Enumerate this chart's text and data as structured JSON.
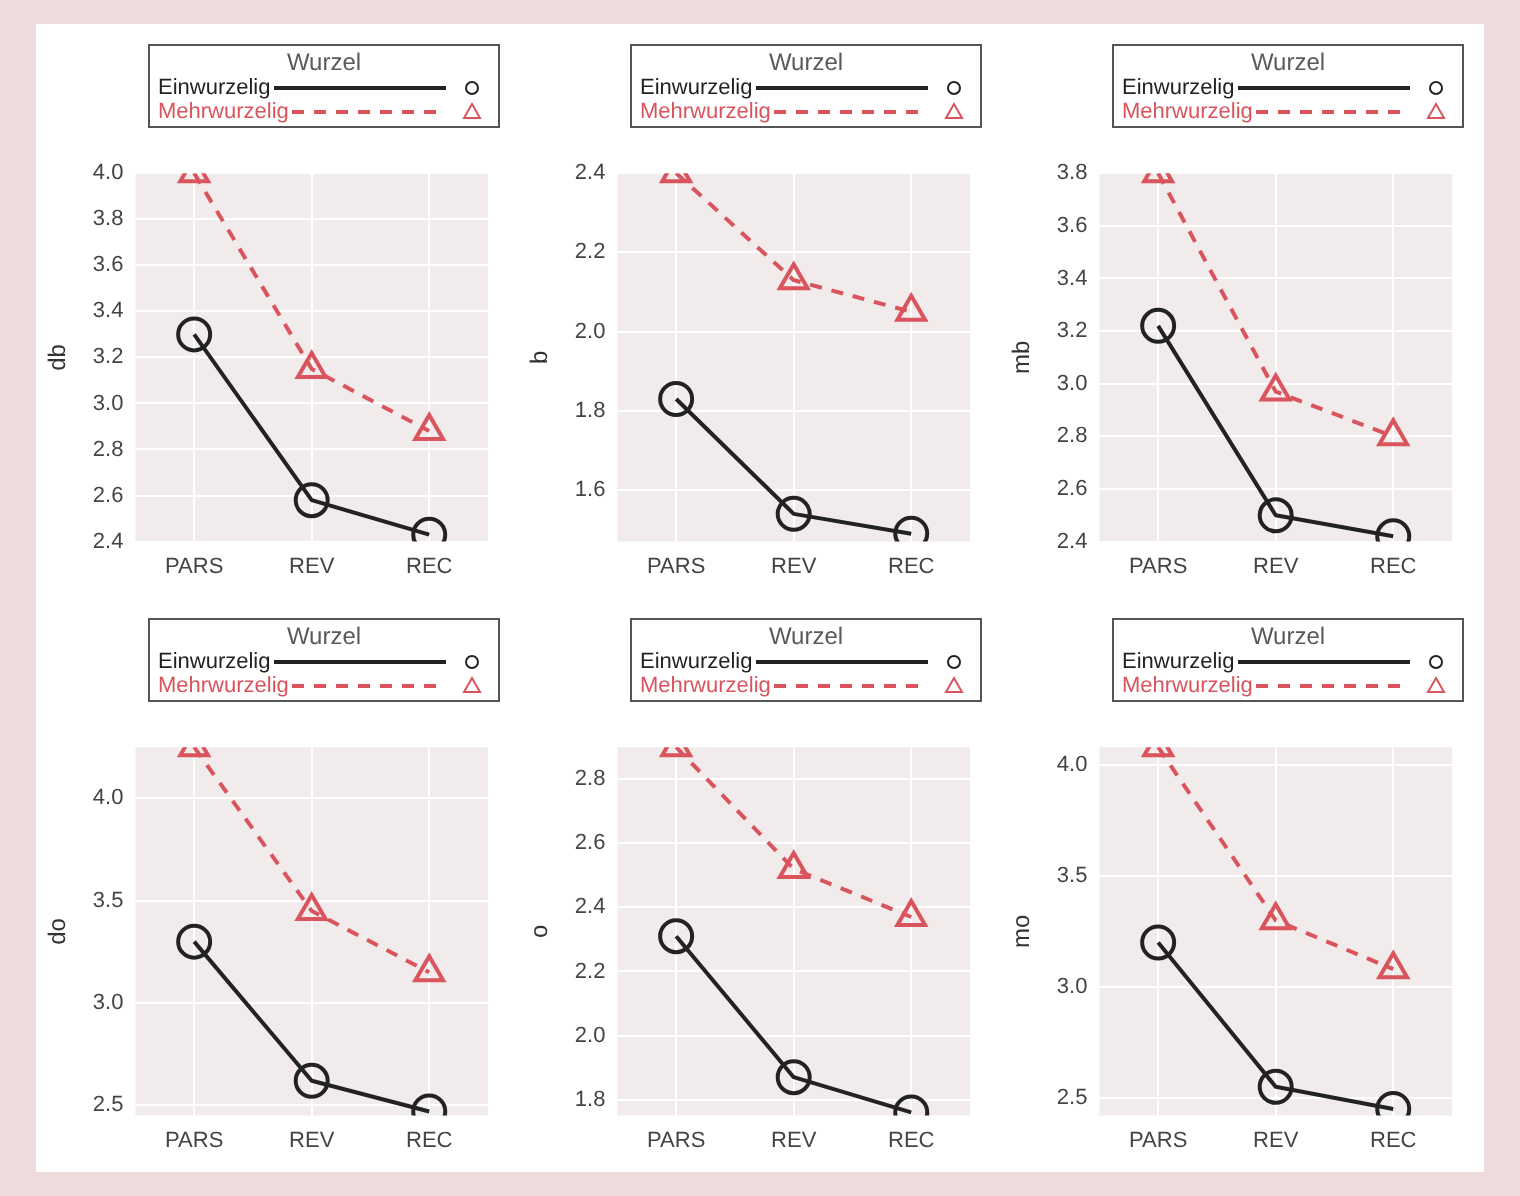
{
  "chart_data": [
    {
      "type": "line",
      "ylabel": "db",
      "legend_title": "Wurzel",
      "legend": "top",
      "grid": true,
      "categories": [
        "PARS",
        "REV",
        "REC"
      ],
      "ylim": [
        2.4,
        4.0
      ],
      "yticks": [
        2.4,
        2.6,
        2.8,
        {
          "value": 3,
          "label": "3.0"
        },
        3.2,
        3.4,
        3.6,
        3.8,
        {
          "value": 4,
          "label": "4.0"
        }
      ],
      "series": [
        {
          "name": "Einwurzelig",
          "color": "#222222",
          "marker": "circle",
          "line_style": "solid",
          "values": [
            3.3,
            2.58,
            2.43
          ]
        },
        {
          "name": "Mehrwurzelig",
          "color": "#d9545c",
          "marker": "triangle",
          "line_style": "dashed",
          "values": [
            4.0,
            3.15,
            2.88
          ]
        }
      ]
    },
    {
      "type": "line",
      "ylabel": "b",
      "legend_title": "Wurzel",
      "legend": "top",
      "grid": true,
      "categories": [
        "PARS",
        "REV",
        "REC"
      ],
      "ylim": [
        1.47,
        2.4
      ],
      "yticks": [
        1.6,
        1.8,
        {
          "value": 2,
          "label": "2.0"
        },
        2.2,
        2.4
      ],
      "series": [
        {
          "name": "Einwurzelig",
          "color": "#222222",
          "marker": "circle",
          "line_style": "solid",
          "values": [
            1.83,
            1.54,
            1.49
          ]
        },
        {
          "name": "Mehrwurzelig",
          "color": "#d9545c",
          "marker": "triangle",
          "line_style": "dashed",
          "values": [
            2.4,
            2.13,
            2.05
          ]
        }
      ]
    },
    {
      "type": "line",
      "ylabel": "mb",
      "legend_title": "Wurzel",
      "legend": "top",
      "grid": true,
      "categories": [
        "PARS",
        "REV",
        "REC"
      ],
      "ylim": [
        2.4,
        3.8
      ],
      "yticks": [
        2.4,
        2.6,
        2.8,
        {
          "value": 3,
          "label": "3.0"
        },
        3.2,
        3.4,
        3.6,
        3.8
      ],
      "series": [
        {
          "name": "Einwurzelig",
          "color": "#222222",
          "marker": "circle",
          "line_style": "solid",
          "values": [
            3.22,
            2.5,
            2.42
          ]
        },
        {
          "name": "Mehrwurzelig",
          "color": "#d9545c",
          "marker": "triangle",
          "line_style": "dashed",
          "values": [
            3.8,
            2.97,
            2.8
          ]
        }
      ]
    },
    {
      "type": "line",
      "ylabel": "do",
      "legend_title": "Wurzel",
      "legend": "top",
      "grid": true,
      "categories": [
        "PARS",
        "REV",
        "REC"
      ],
      "ylim": [
        2.45,
        4.25
      ],
      "yticks": [
        2.5,
        {
          "value": 3,
          "label": "3.0"
        },
        3.5,
        {
          "value": 4,
          "label": "4.0"
        }
      ],
      "series": [
        {
          "name": "Einwurzelig",
          "color": "#222222",
          "marker": "circle",
          "line_style": "solid",
          "values": [
            3.3,
            2.62,
            2.47
          ]
        },
        {
          "name": "Mehrwurzelig",
          "color": "#d9545c",
          "marker": "triangle",
          "line_style": "dashed",
          "values": [
            4.25,
            3.45,
            3.15
          ]
        }
      ]
    },
    {
      "type": "line",
      "ylabel": "o",
      "legend_title": "Wurzel",
      "legend": "top",
      "grid": true,
      "categories": [
        "PARS",
        "REV",
        "REC"
      ],
      "ylim": [
        1.75,
        2.9
      ],
      "yticks": [
        1.8,
        {
          "value": 2,
          "label": "2.0"
        },
        2.2,
        2.4,
        2.6,
        2.8
      ],
      "series": [
        {
          "name": "Einwurzelig",
          "color": "#222222",
          "marker": "circle",
          "line_style": "solid",
          "values": [
            2.31,
            1.87,
            1.76
          ]
        },
        {
          "name": "Mehrwurzelig",
          "color": "#d9545c",
          "marker": "triangle",
          "line_style": "dashed",
          "values": [
            2.9,
            2.52,
            2.37
          ]
        }
      ]
    },
    {
      "type": "line",
      "ylabel": "mo",
      "legend_title": "Wurzel",
      "legend": "top",
      "grid": true,
      "categories": [
        "PARS",
        "REV",
        "REC"
      ],
      "ylim": [
        2.42,
        4.08
      ],
      "yticks": [
        2.5,
        {
          "value": 3,
          "label": "3.0"
        },
        3.5,
        {
          "value": 4,
          "label": "4.0"
        }
      ],
      "series": [
        {
          "name": "Einwurzelig",
          "color": "#222222",
          "marker": "circle",
          "line_style": "solid",
          "values": [
            3.2,
            2.55,
            2.45
          ]
        },
        {
          "name": "Mehrwurzelig",
          "color": "#d9545c",
          "marker": "triangle",
          "line_style": "dashed",
          "values": [
            4.08,
            3.3,
            3.08
          ]
        }
      ]
    }
  ]
}
